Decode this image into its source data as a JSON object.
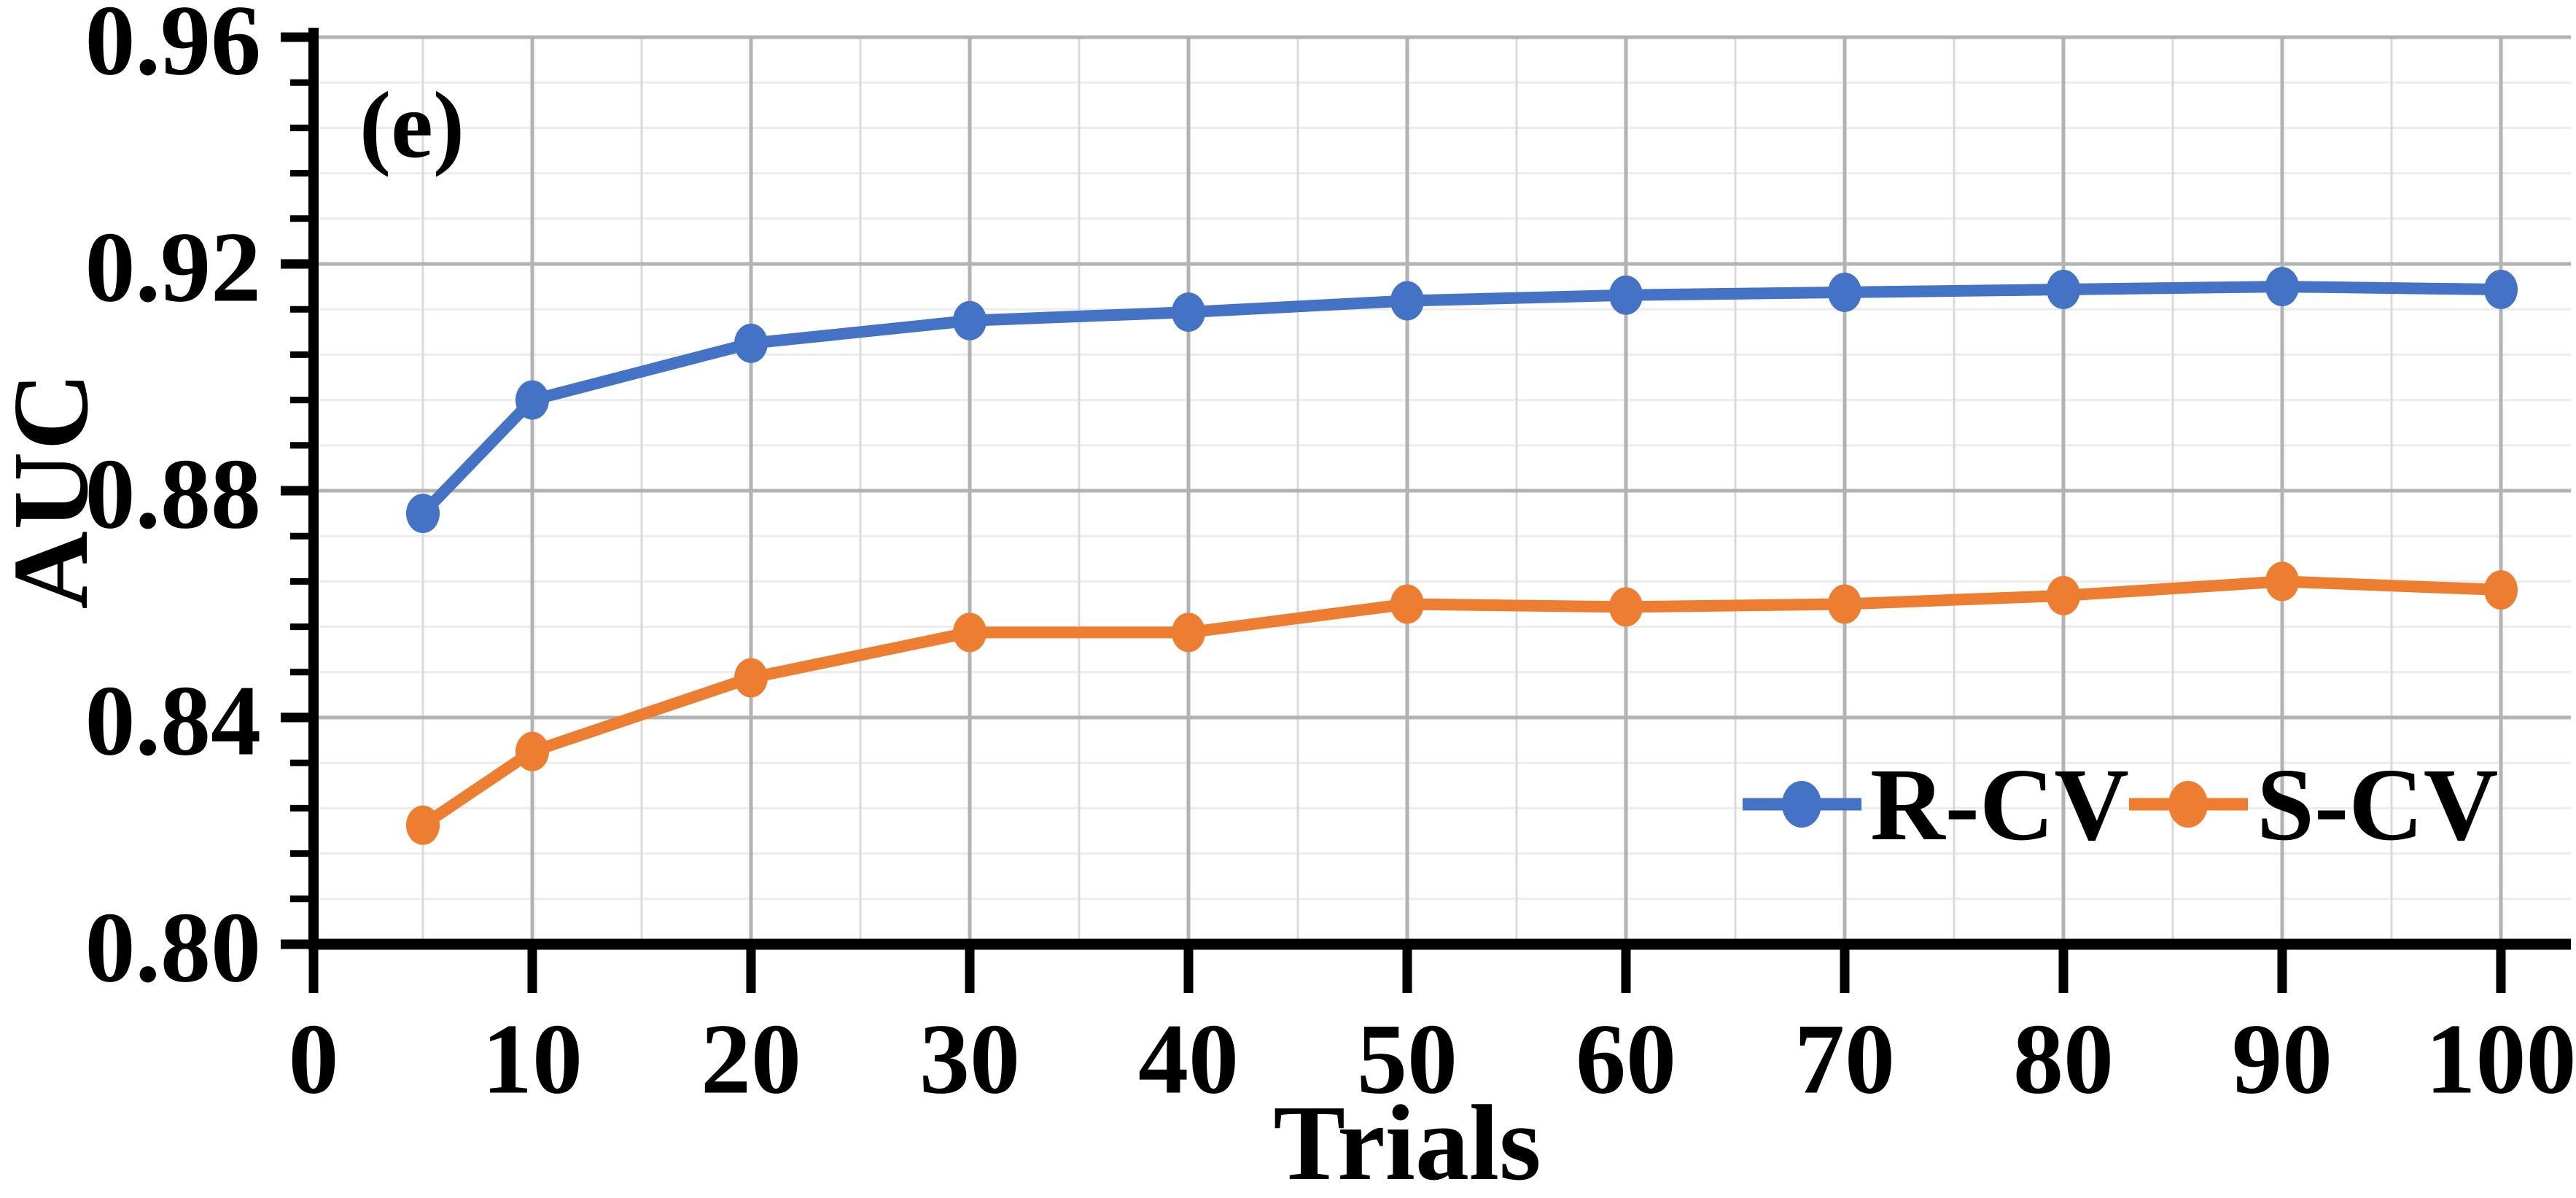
{
  "figure": {
    "panel_label": "(e)",
    "background_color": "#ffffff",
    "x_axis": {
      "title": "Trials",
      "min": 0,
      "max": 100,
      "tick_values": [
        0,
        10,
        20,
        30,
        40,
        50,
        60,
        70,
        80,
        90,
        100
      ],
      "tick_labels": [
        "0",
        "10",
        "20",
        "30",
        "40",
        "50",
        "60",
        "70",
        "80",
        "90",
        "100"
      ],
      "minor_grid_step": 5,
      "major_grid_step": 10
    },
    "y_axis": {
      "title": "AUC",
      "min": 0.8,
      "max": 0.96,
      "tick_values": [
        0.96,
        0.92,
        0.88,
        0.84,
        0.8
      ],
      "tick_labels": [
        "0.96",
        "0.92",
        "0.88",
        "0.84",
        "0.80"
      ],
      "minor_grid_step": 0.008,
      "major_grid_step": 0.04
    },
    "colors": {
      "axis": "#000000",
      "grid_minor_h": "#ececec",
      "grid_minor_v": "#dadada",
      "grid_major": "#b3b3b3",
      "series_blue": "#4472C4",
      "series_orange": "#ED7D31"
    },
    "legend": {
      "position": "inside-right-middle",
      "items": [
        {
          "label": "R-CV",
          "color": "#4472C4"
        },
        {
          "label": "S-CV",
          "color": "#ED7D31"
        }
      ]
    }
  },
  "chart_data": {
    "type": "line",
    "title": "",
    "xlabel": "Trials",
    "ylabel": "AUC",
    "xlim": [
      0,
      100
    ],
    "ylim": [
      0.8,
      0.96
    ],
    "grid": "on",
    "legend_position": "inside-right-middle",
    "x": [
      5,
      10,
      20,
      30,
      40,
      50,
      60,
      70,
      80,
      90,
      100
    ],
    "series": [
      {
        "name": "R-CV",
        "color": "#4472C4",
        "marker": "circle",
        "values": [
          0.876,
          0.896,
          0.906,
          0.91,
          0.9115,
          0.9135,
          0.9145,
          0.915,
          0.9155,
          0.916,
          0.9155
        ]
      },
      {
        "name": "S-CV",
        "color": "#ED7D31",
        "marker": "circle",
        "values": [
          0.821,
          0.834,
          0.847,
          0.855,
          0.855,
          0.86,
          0.8595,
          0.86,
          0.8615,
          0.864,
          0.8625
        ]
      }
    ]
  }
}
